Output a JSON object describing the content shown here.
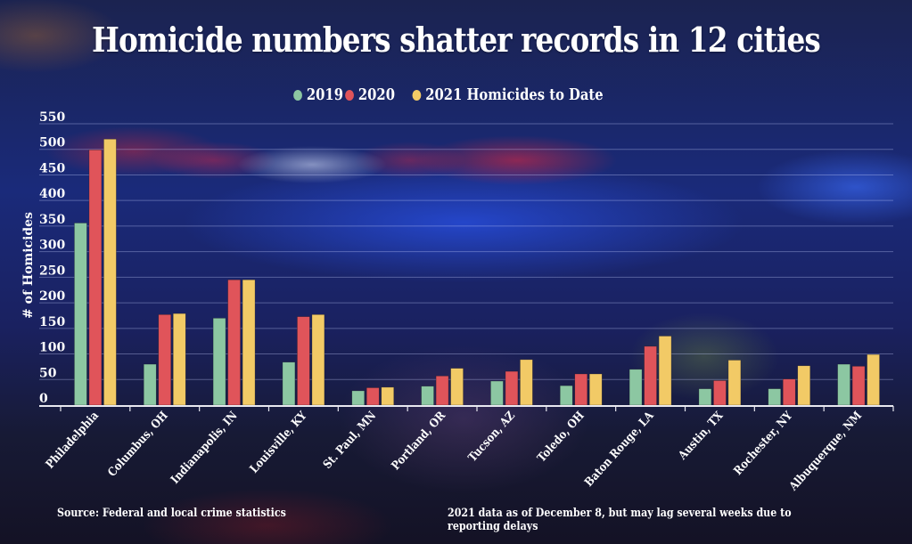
{
  "chart_data": {
    "type": "bar",
    "title": "Homicide numbers shatter records in 12 cities",
    "xlabel": "",
    "ylabel": "# of Homicides",
    "ylim": [
      0,
      550
    ],
    "yticks": [
      0,
      50,
      100,
      150,
      200,
      250,
      300,
      350,
      400,
      450,
      500,
      550
    ],
    "grid": true,
    "legend_position": "top-center",
    "categories": [
      "Philadelphia",
      "Columbus, OH",
      "Indianapolis, IN",
      "Louisville, KY",
      "St. Paul, MN",
      "Portland, OR",
      "Tucson, AZ",
      "Toledo, OH",
      "Baton Rouge, LA",
      "Austin, TX",
      "Rochester, NY",
      "Albuquerque, NM"
    ],
    "series": [
      {
        "name": "2019",
        "color": "#8cc7a2",
        "values": [
          356,
          80,
          170,
          84,
          28,
          37,
          47,
          38,
          70,
          32,
          32,
          80
        ]
      },
      {
        "name": "2020",
        "color": "#e0545a",
        "values": [
          499,
          177,
          245,
          173,
          34,
          57,
          66,
          61,
          115,
          48,
          51,
          76
        ]
      },
      {
        "name": "2021 Homicides to Date",
        "color": "#f2ca66",
        "values": [
          520,
          179,
          245,
          177,
          35,
          72,
          89,
          61,
          135,
          88,
          77,
          99
        ]
      }
    ]
  },
  "footer": {
    "source": "Source: Federal and local crime statistics",
    "note": "2021 data as of December 8, but may lag several weeks due to reporting delays"
  }
}
